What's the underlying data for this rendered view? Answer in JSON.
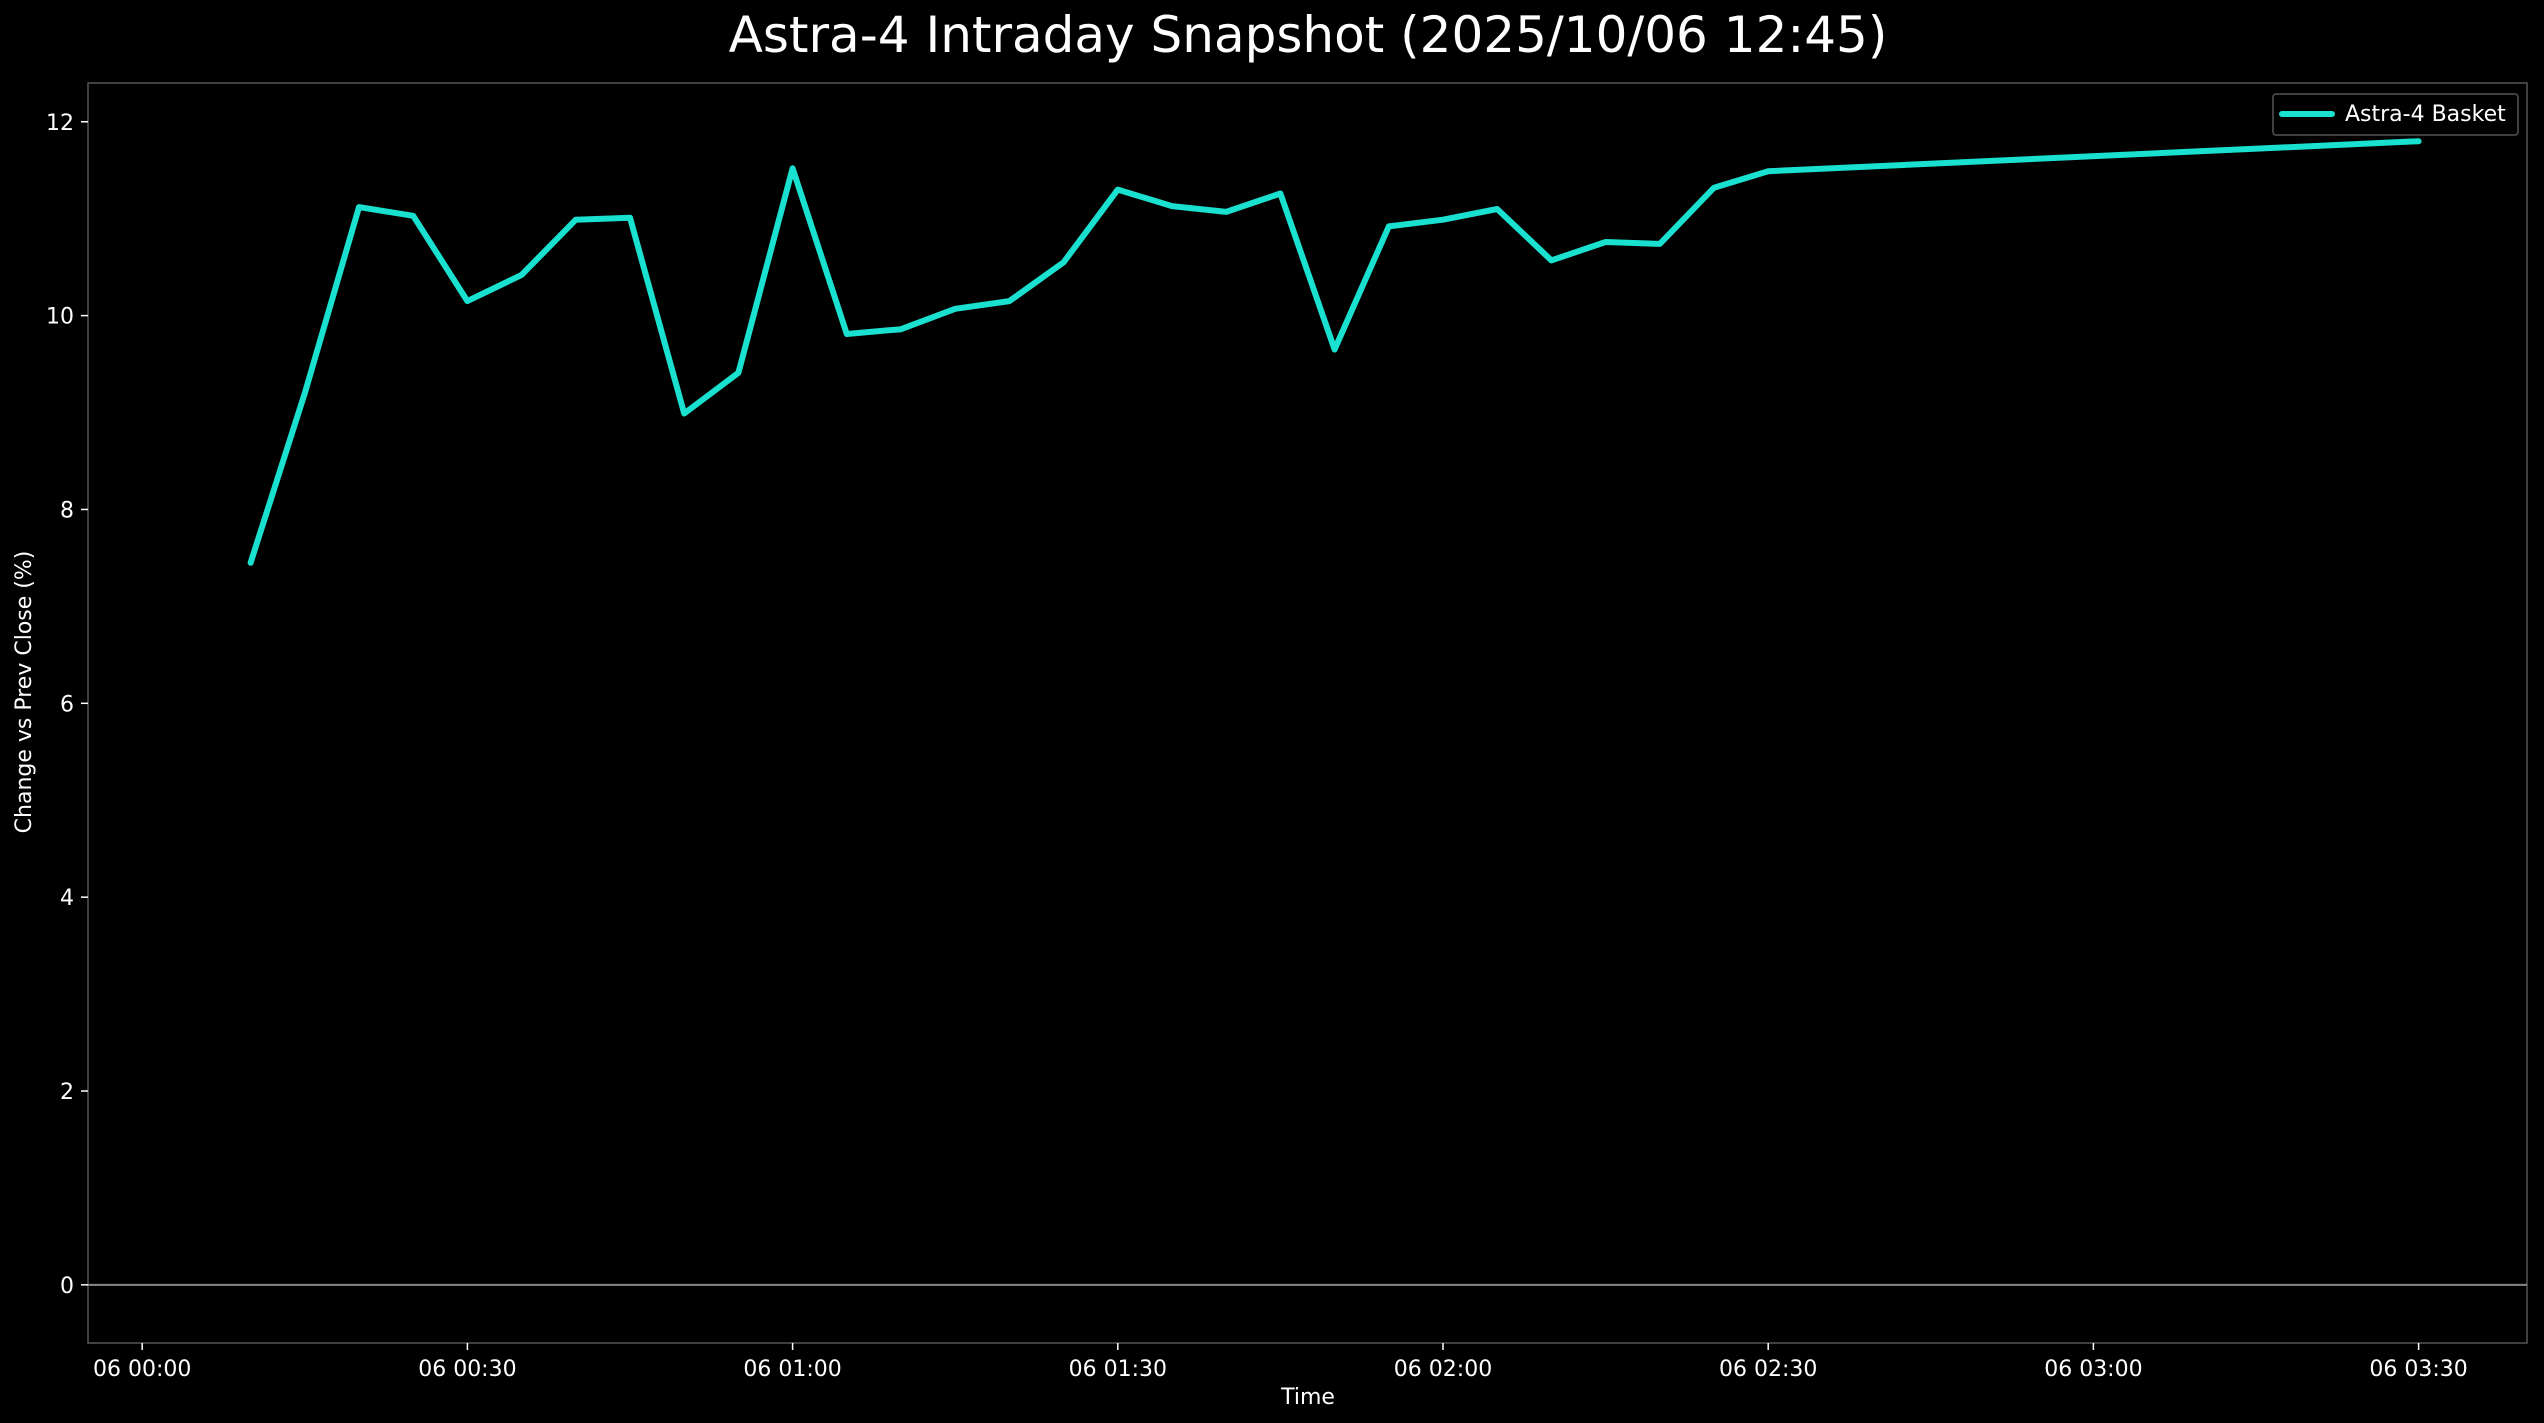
{
  "chart_data": {
    "type": "line",
    "title": "Astra-4 Intraday Snapshot (2025/10/06 12:45)",
    "xlabel": "Time",
    "ylabel": "Change vs Prev Close (%)",
    "x_ticks": [
      {
        "t": "00:00",
        "label": "06 00:00"
      },
      {
        "t": "00:30",
        "label": "06 00:30"
      },
      {
        "t": "01:00",
        "label": "06 01:00"
      },
      {
        "t": "01:30",
        "label": "06 01:30"
      },
      {
        "t": "02:00",
        "label": "06 02:00"
      },
      {
        "t": "02:30",
        "label": "06 02:30"
      },
      {
        "t": "03:00",
        "label": "06 03:00"
      },
      {
        "t": "03:30",
        "label": "06 03:30"
      }
    ],
    "xlim": [
      "-00:05",
      "03:40"
    ],
    "y_ticks": [
      0,
      2,
      4,
      6,
      8,
      10,
      12
    ],
    "ylim": [
      -0.6,
      12.4
    ],
    "zero_line": true,
    "grid": false,
    "legend_position": "top-right",
    "series": [
      {
        "name": "Astra-4 Basket",
        "color": "#19e0cf",
        "points": [
          {
            "x": "00:10",
            "y": 7.45
          },
          {
            "x": "00:15",
            "y": 9.2
          },
          {
            "x": "00:20",
            "y": 11.12
          },
          {
            "x": "00:25",
            "y": 11.03
          },
          {
            "x": "00:30",
            "y": 10.15
          },
          {
            "x": "00:35",
            "y": 10.42
          },
          {
            "x": "00:40",
            "y": 10.99
          },
          {
            "x": "00:45",
            "y": 11.01
          },
          {
            "x": "00:50",
            "y": 8.99
          },
          {
            "x": "00:55",
            "y": 9.41
          },
          {
            "x": "01:00",
            "y": 11.52
          },
          {
            "x": "01:05",
            "y": 9.81
          },
          {
            "x": "01:10",
            "y": 9.86
          },
          {
            "x": "01:15",
            "y": 10.07
          },
          {
            "x": "01:20",
            "y": 10.15
          },
          {
            "x": "01:25",
            "y": 10.55
          },
          {
            "x": "01:30",
            "y": 11.3
          },
          {
            "x": "01:35",
            "y": 11.13
          },
          {
            "x": "01:40",
            "y": 11.07
          },
          {
            "x": "01:45",
            "y": 11.26
          },
          {
            "x": "01:50",
            "y": 9.65
          },
          {
            "x": "01:55",
            "y": 10.92
          },
          {
            "x": "02:00",
            "y": 10.99
          },
          {
            "x": "02:05",
            "y": 11.1
          },
          {
            "x": "02:10",
            "y": 10.57
          },
          {
            "x": "02:15",
            "y": 10.76
          },
          {
            "x": "02:20",
            "y": 10.74
          },
          {
            "x": "02:25",
            "y": 11.32
          },
          {
            "x": "02:30",
            "y": 11.49
          },
          {
            "x": "03:30",
            "y": 11.8
          }
        ]
      }
    ]
  }
}
